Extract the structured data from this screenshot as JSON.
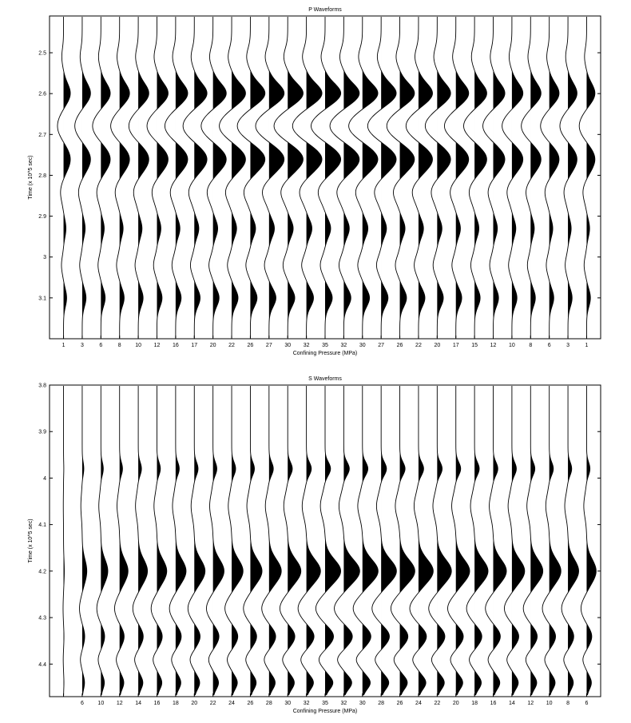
{
  "chart_data": [
    {
      "type": "line",
      "subtype": "seismic-wiggle-variable-area",
      "title": "P Waveforms",
      "xlabel": "Confining Pressure (MPa)",
      "ylabel": "Time (x 10^5 sec)",
      "ylim": [
        2.41,
        3.2
      ],
      "y_ticks": [
        "2.5",
        "2.6",
        "2.7",
        "2.8",
        "2.9",
        "3",
        "3.1"
      ],
      "y_tick_values": [
        2.5,
        2.6,
        2.7,
        2.8,
        2.9,
        3.0,
        3.1
      ],
      "categories": [
        "1",
        "3",
        "6",
        "8",
        "10",
        "12",
        "16",
        "17",
        "20",
        "22",
        "26",
        "27",
        "30",
        "32",
        "35",
        "32",
        "30",
        "27",
        "26",
        "22",
        "20",
        "17",
        "15",
        "12",
        "10",
        "8",
        "6",
        "3",
        "1"
      ],
      "trace_amplitudes": [
        0.45,
        0.55,
        0.62,
        0.66,
        0.7,
        0.74,
        0.8,
        0.84,
        0.88,
        0.92,
        0.97,
        1.0,
        1.02,
        1.03,
        1.04,
        1.03,
        1.02,
        1.0,
        0.97,
        0.93,
        0.89,
        0.85,
        0.81,
        0.77,
        0.73,
        0.69,
        0.65,
        0.6,
        0.55
      ],
      "first_arrival": 2.6,
      "grid": false,
      "legend": "none"
    },
    {
      "type": "line",
      "subtype": "seismic-wiggle-variable-area",
      "title": "S Waveforms",
      "xlabel": "Confining Pressure (MPa)",
      "ylabel": "Time (x 10^5 sec)",
      "ylim": [
        3.8,
        4.47
      ],
      "y_ticks": [
        "3.8",
        "3.9",
        "4",
        "4.1",
        "4.2",
        "4.3",
        "4.4"
      ],
      "y_tick_values": [
        3.8,
        3.9,
        4.0,
        4.1,
        4.2,
        4.3,
        4.4
      ],
      "categories": [
        "",
        "6",
        "10",
        "12",
        "14",
        "16",
        "18",
        "20",
        "22",
        "24",
        "26",
        "28",
        "30",
        "32",
        "35",
        "32",
        "30",
        "28",
        "26",
        "24",
        "22",
        "20",
        "18",
        "16",
        "14",
        "12",
        "10",
        "8",
        "6"
      ],
      "trace_amplitudes": [
        0.05,
        0.3,
        0.45,
        0.55,
        0.6,
        0.64,
        0.68,
        0.7,
        0.72,
        0.74,
        0.76,
        0.8,
        0.86,
        0.92,
        1.02,
        1.04,
        1.02,
        1.0,
        0.98,
        0.96,
        0.93,
        0.9,
        0.88,
        0.86,
        0.83,
        0.8,
        0.76,
        0.7,
        0.62
      ],
      "first_arrival": 4.2,
      "grid": false,
      "legend": "none"
    }
  ]
}
